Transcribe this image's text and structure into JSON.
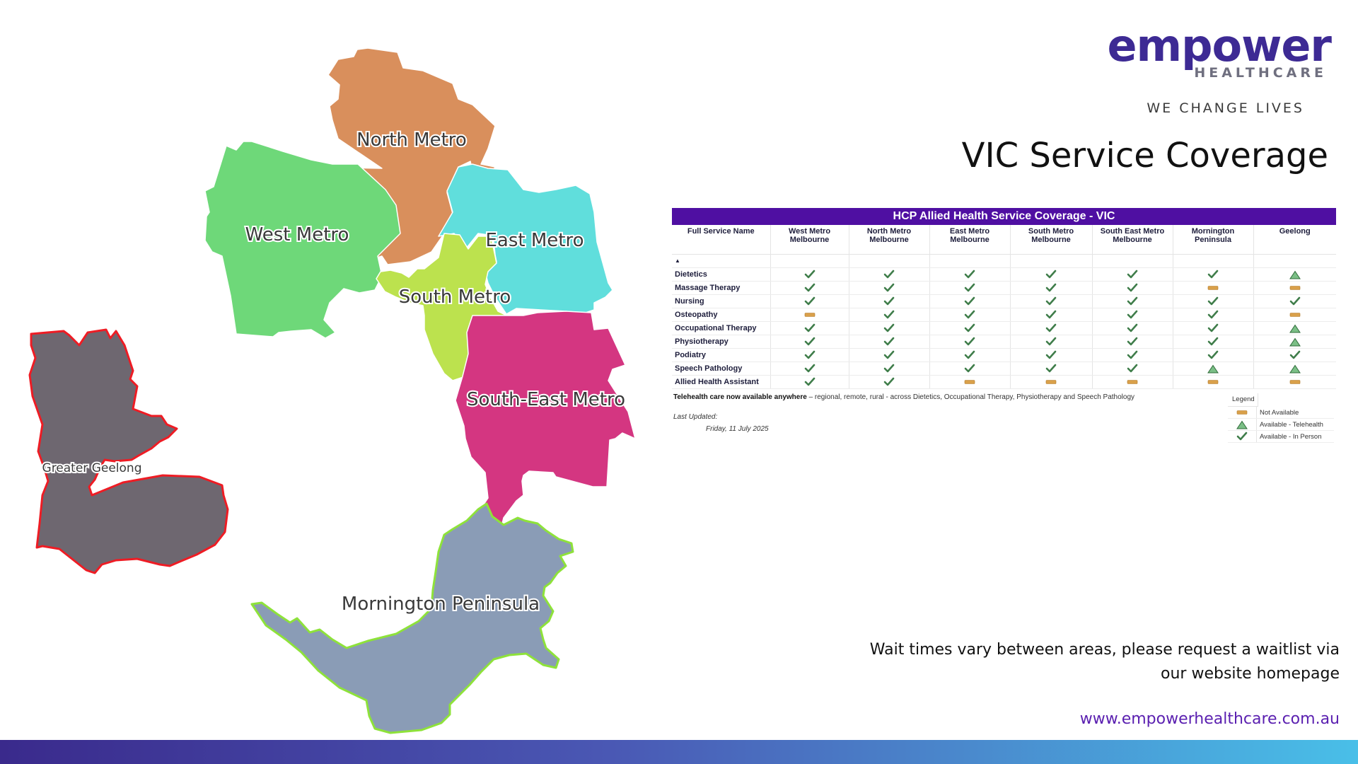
{
  "brand": {
    "name": "empower",
    "sub": "HEALTHCARE",
    "tagline": "WE CHANGE LIVES"
  },
  "page_title": "VIC Service Coverage",
  "map": {
    "regions": [
      {
        "label": "North Metro",
        "color": "#d98f5c"
      },
      {
        "label": "West Metro",
        "color": "#6ed879"
      },
      {
        "label": "East Metro",
        "color": "#60dedc"
      },
      {
        "label": "South Metro",
        "color": "#bce24e"
      },
      {
        "label": "South-East Metro",
        "color": "#d43681"
      },
      {
        "label": "Greater Geelong",
        "color": "#6e6770",
        "outline": "#ee1c24"
      },
      {
        "label": "Mornington Peninsula",
        "color": "#8a9cb6",
        "outline": "#8ee23a"
      }
    ]
  },
  "table": {
    "title": "HCP Allied Health Service Coverage - VIC",
    "columns": [
      "Full Service Name",
      "West Metro Melbourne",
      "North Metro Melbourne",
      "East Metro Melbourne",
      "South Metro Melbourne",
      "South East Metro Melbourne",
      "Mornington Peninsula",
      "Geelong"
    ],
    "rows": [
      {
        "service": "Dietetics",
        "values": [
          "in-person",
          "in-person",
          "in-person",
          "in-person",
          "in-person",
          "in-person",
          "telehealth"
        ]
      },
      {
        "service": "Massage Therapy",
        "values": [
          "in-person",
          "in-person",
          "in-person",
          "in-person",
          "in-person",
          "not-available",
          "not-available"
        ]
      },
      {
        "service": "Nursing",
        "values": [
          "in-person",
          "in-person",
          "in-person",
          "in-person",
          "in-person",
          "in-person",
          "in-person"
        ]
      },
      {
        "service": "Osteopathy",
        "values": [
          "not-available",
          "in-person",
          "in-person",
          "in-person",
          "in-person",
          "in-person",
          "not-available"
        ]
      },
      {
        "service": "Occupational Therapy",
        "values": [
          "in-person",
          "in-person",
          "in-person",
          "in-person",
          "in-person",
          "in-person",
          "telehealth"
        ]
      },
      {
        "service": "Physiotherapy",
        "values": [
          "in-person",
          "in-person",
          "in-person",
          "in-person",
          "in-person",
          "in-person",
          "telehealth"
        ]
      },
      {
        "service": "Podiatry",
        "values": [
          "in-person",
          "in-person",
          "in-person",
          "in-person",
          "in-person",
          "in-person",
          "in-person"
        ]
      },
      {
        "service": "Speech Pathology",
        "values": [
          "in-person",
          "in-person",
          "in-person",
          "in-person",
          "in-person",
          "telehealth",
          "telehealth"
        ]
      },
      {
        "service": "Allied Health Assistant",
        "values": [
          "in-person",
          "in-person",
          "not-available",
          "not-available",
          "not-available",
          "not-available",
          "not-available"
        ]
      }
    ],
    "note_bold": "Telehealth care now available anywhere",
    "note_rest": " – regional, remote, rural - across Dietetics, Occupational Therapy, Physiotherapy and Speech Pathology",
    "last_updated_label": "Last Updated:",
    "last_updated_date": "Friday, 11 July 2025"
  },
  "legend": {
    "title": "Legend",
    "items": [
      {
        "icon": "not-available",
        "label": "Not Available"
      },
      {
        "icon": "telehealth",
        "label": "Available - Telehealth"
      },
      {
        "icon": "in-person",
        "label": "Available - In Person"
      }
    ]
  },
  "colors": {
    "accent": "#4f0fa2",
    "check": "#3f7d4a",
    "triangle": "#7bbf86",
    "na": "#d9a04a"
  },
  "wait_note": {
    "line1": "Wait times vary between areas, please request a waitlist via",
    "line2": "our website homepage"
  },
  "website": "www.empowerhealthcare.com.au"
}
